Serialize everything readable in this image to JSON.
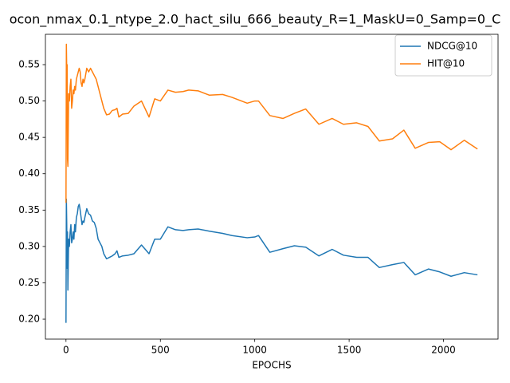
{
  "chart_data": {
    "type": "line",
    "title": "ocon_nmax_0.1_ntype_2.0_hact_silu_666_beauty_R=1_MaskU=0_Samp=0_C",
    "x_label": "EPOCHS",
    "x": [
      0,
      2,
      4,
      6,
      8,
      10,
      14,
      18,
      22,
      26,
      30,
      34,
      38,
      42,
      46,
      50,
      55,
      60,
      65,
      70,
      75,
      80,
      85,
      90,
      95,
      100,
      110,
      120,
      130,
      140,
      150,
      160,
      170,
      180,
      190,
      200,
      215,
      230,
      245,
      260,
      270,
      280,
      300,
      330,
      360,
      400,
      440,
      470,
      500,
      540,
      580,
      620,
      650,
      700,
      760,
      830,
      880,
      960,
      1000,
      1020,
      1080,
      1150,
      1210,
      1270,
      1340,
      1410,
      1470,
      1540,
      1600,
      1660,
      1730,
      1790,
      1850,
      1920,
      1980,
      2040,
      2110,
      2180
    ],
    "series": [
      {
        "name": "NDCG@10",
        "color": "#1f77b4",
        "values": [
          0.195,
          0.365,
          0.33,
          0.27,
          0.32,
          0.24,
          0.31,
          0.3,
          0.32,
          0.33,
          0.305,
          0.31,
          0.32,
          0.31,
          0.33,
          0.32,
          0.34,
          0.345,
          0.355,
          0.358,
          0.35,
          0.34,
          0.33,
          0.335,
          0.333,
          0.34,
          0.352,
          0.345,
          0.343,
          0.335,
          0.333,
          0.325,
          0.31,
          0.305,
          0.3,
          0.29,
          0.283,
          0.285,
          0.287,
          0.29,
          0.294,
          0.285,
          0.287,
          0.288,
          0.29,
          0.302,
          0.29,
          0.31,
          0.31,
          0.327,
          0.323,
          0.322,
          0.323,
          0.324,
          0.321,
          0.318,
          0.315,
          0.312,
          0.313,
          0.315,
          0.292,
          0.297,
          0.301,
          0.299,
          0.287,
          0.296,
          0.288,
          0.285,
          0.285,
          0.271,
          0.275,
          0.278,
          0.261,
          0.269,
          0.265,
          0.259,
          0.264,
          0.261
        ]
      },
      {
        "name": "HIT@10",
        "color": "#ff7f0e",
        "values": [
          0.36,
          0.578,
          0.54,
          0.55,
          0.42,
          0.41,
          0.51,
          0.5,
          0.52,
          0.53,
          0.49,
          0.5,
          0.515,
          0.51,
          0.52,
          0.515,
          0.53,
          0.535,
          0.54,
          0.545,
          0.54,
          0.525,
          0.52,
          0.53,
          0.525,
          0.53,
          0.545,
          0.54,
          0.545,
          0.54,
          0.535,
          0.53,
          0.52,
          0.51,
          0.5,
          0.49,
          0.481,
          0.482,
          0.487,
          0.488,
          0.49,
          0.478,
          0.482,
          0.483,
          0.493,
          0.5,
          0.478,
          0.503,
          0.5,
          0.515,
          0.512,
          0.513,
          0.515,
          0.514,
          0.508,
          0.509,
          0.505,
          0.497,
          0.5,
          0.5,
          0.48,
          0.476,
          0.483,
          0.489,
          0.468,
          0.476,
          0.468,
          0.47,
          0.465,
          0.445,
          0.448,
          0.46,
          0.435,
          0.443,
          0.444,
          0.433,
          0.446,
          0.434
        ]
      }
    ],
    "xlim": [
      -109,
      2289
    ],
    "xticks": [
      0,
      500,
      1000,
      1500,
      2000
    ],
    "ylim": [
      0.1726,
      0.5917
    ],
    "yticks": [
      {
        "value": 0.2,
        "label": "0.20"
      },
      {
        "value": 0.25,
        "label": "0.25"
      },
      {
        "value": 0.3,
        "label": "0.30"
      },
      {
        "value": 0.35,
        "label": "0.35"
      },
      {
        "value": 0.4,
        "label": "0.40"
      },
      {
        "value": 0.45,
        "label": "0.45"
      },
      {
        "value": 0.5,
        "label": "0.50"
      },
      {
        "value": 0.55,
        "label": "0.55"
      }
    ],
    "legend": "upper right",
    "grid": false
  }
}
